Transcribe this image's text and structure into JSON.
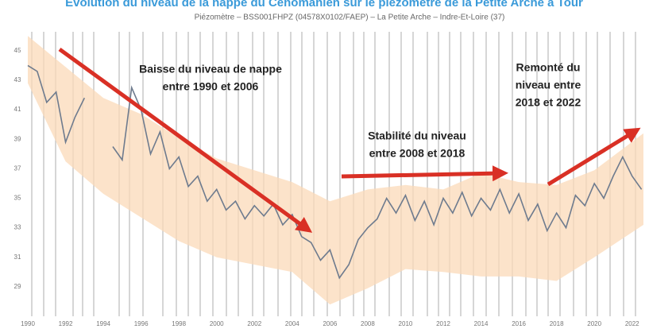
{
  "chart_data": {
    "type": "line",
    "title": "Évolution du niveau de la nappe du Cénomanien sur le piézomètre de la Petite Arche à Tour",
    "subtitle": "Piézomètre – BSS001FHPZ (04578X0102/FAEP) – La Petite Arche – Indre-Et-Loire (37)",
    "annotations": [
      {
        "lines": [
          "Baisse du niveau de nappe",
          "entre 1990 et 2006"
        ]
      },
      {
        "lines": [
          "Stabilité du niveau",
          "entre 2008 et 2018"
        ]
      },
      {
        "lines": [
          "Remonté du",
          "niveau entre",
          "2018 et 2022"
        ]
      }
    ],
    "x": [
      1990,
      1990.5,
      1991,
      1991.5,
      1992,
      1992.5,
      1993,
      1993.5,
      1994,
      1994.5,
      1995,
      1995.5,
      1996,
      1996.5,
      1997,
      1997.5,
      1998,
      1998.5,
      1999,
      1999.5,
      2000,
      2000.5,
      2001,
      2001.5,
      2002,
      2002.5,
      2003,
      2003.5,
      2004,
      2004.5,
      2005,
      2005.5,
      2006,
      2006.5,
      2007,
      2007.5,
      2008,
      2008.5,
      2009,
      2009.5,
      2010,
      2010.5,
      2011,
      2011.5,
      2012,
      2012.5,
      2013,
      2013.5,
      2014,
      2014.5,
      2015,
      2015.5,
      2016,
      2016.5,
      2017,
      2017.5,
      2018,
      2018.5,
      2019,
      2019.5,
      2020,
      2020.5,
      2021,
      2021.5,
      2022,
      2022.5
    ],
    "series": [
      {
        "color": "#6e7b8e",
        "values": [
          44.0,
          43.6,
          41.5,
          42.2,
          38.8,
          40.5,
          41.8,
          null,
          null,
          38.5,
          37.6,
          42.5,
          41.0,
          38.0,
          39.5,
          37.0,
          37.8,
          35.8,
          36.5,
          34.8,
          35.6,
          34.2,
          34.8,
          33.6,
          34.5,
          33.8,
          34.6,
          33.2,
          33.9,
          32.4,
          32.0,
          30.8,
          31.5,
          29.6,
          30.5,
          32.2,
          33.0,
          33.6,
          35.0,
          34.0,
          35.2,
          33.5,
          34.8,
          33.2,
          35.0,
          34.0,
          35.4,
          33.8,
          35.0,
          34.2,
          35.6,
          34.0,
          35.3,
          33.5,
          34.6,
          32.8,
          34.0,
          33.0,
          35.2,
          34.5,
          36.0,
          35.0,
          36.5,
          37.8,
          36.5,
          35.6
        ]
      }
    ],
    "band": {
      "color": "#fbd9b8",
      "x": [
        1990,
        1992,
        1994,
        1996,
        1998,
        2000,
        2002,
        2004,
        2006,
        2008,
        2010,
        2012,
        2014,
        2016,
        2018,
        2020,
        2022.6
      ],
      "upper": [
        46.0,
        43.9,
        41.8,
        40.7,
        39.1,
        37.7,
        36.9,
        36.1,
        34.8,
        35.6,
        35.9,
        35.6,
        36.7,
        36.1,
        35.9,
        36.9,
        39.4
      ],
      "lower": [
        42.8,
        37.5,
        35.3,
        33.7,
        32.1,
        31.0,
        30.5,
        30.0,
        27.8,
        28.9,
        30.2,
        30.0,
        29.7,
        29.7,
        29.4,
        31.0,
        33.2
      ]
    },
    "xlim": [
      1990,
      2022.6
    ],
    "xticks": [
      1990,
      1992,
      1994,
      1996,
      1998,
      2000,
      2002,
      2004,
      2006,
      2008,
      2010,
      2012,
      2014,
      2016,
      2018,
      2020,
      2022
    ],
    "ylim": [
      27,
      46.5
    ],
    "yticks": [
      29,
      31,
      33,
      35,
      37,
      39,
      41,
      43,
      45
    ]
  }
}
